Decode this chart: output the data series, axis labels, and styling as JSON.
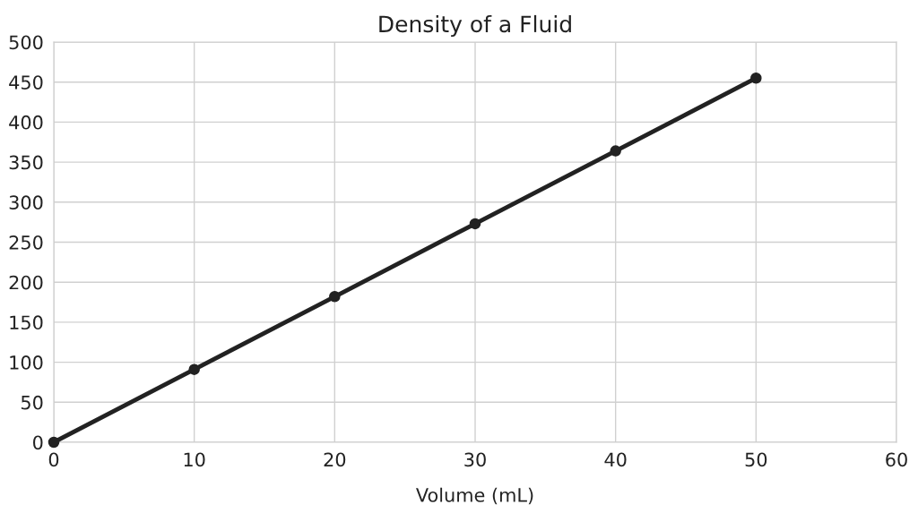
{
  "chart_data": {
    "type": "line",
    "title": "Density of a Fluid",
    "xlabel": "Volume (mL)",
    "x": [
      0,
      10,
      20,
      30,
      40,
      50
    ],
    "series": [
      {
        "color": "#222222",
        "values": [
          0,
          91,
          182,
          273,
          364,
          455
        ]
      }
    ],
    "xlim": [
      0,
      60
    ],
    "xticks": [
      0,
      10,
      20,
      30,
      40,
      50,
      60
    ],
    "ylim": [
      0,
      500
    ],
    "yticks": [
      0,
      50,
      100,
      150,
      200,
      250,
      300,
      350,
      400,
      450,
      500
    ],
    "grid": true,
    "marker": "circle",
    "line_style": "solid",
    "legend": false
  }
}
